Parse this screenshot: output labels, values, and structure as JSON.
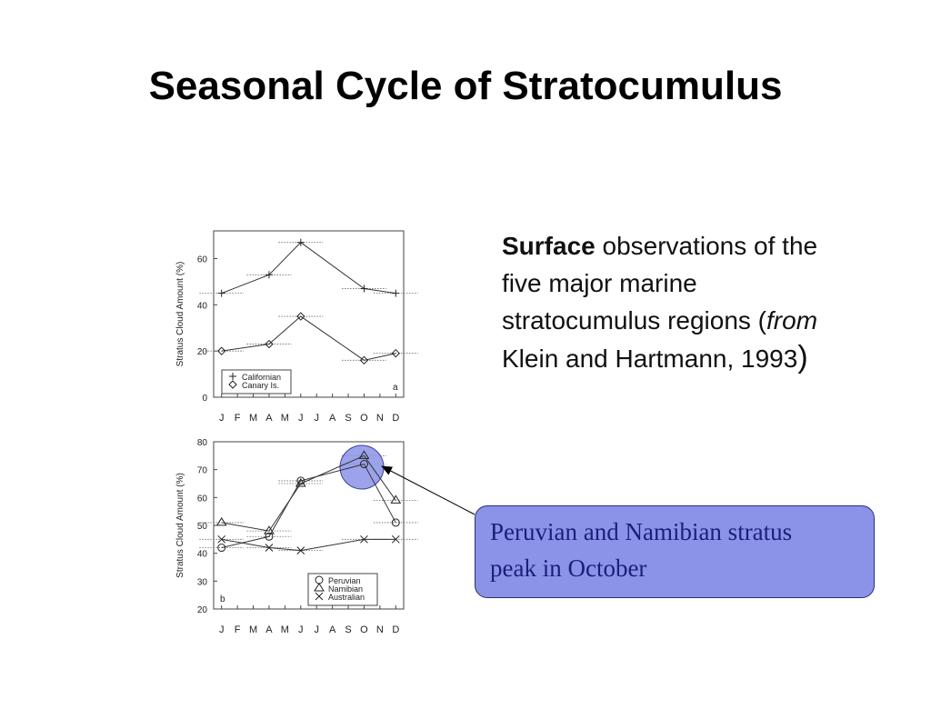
{
  "slide": {
    "title": "Seasonal Cycle of Stratocumulus",
    "description": {
      "part1_bold": "Surface",
      "part2": " observations of the five major marine stratocumulus regions (",
      "part3_italic": "from",
      "part4": " Klein and Hartmann, 1993",
      "part5": ")"
    },
    "callout": {
      "line1": "Peruvian and Namibian stratus",
      "line2": "peak in October"
    }
  },
  "chart_data": [
    {
      "type": "line",
      "panel_label": "a",
      "ylabel": "Stratus Cloud Amount (%)",
      "ylim": [
        0,
        72
      ],
      "yticks": [
        0,
        20,
        40,
        60
      ],
      "categories": [
        "J",
        "F",
        "M",
        "A",
        "M",
        "J",
        "J",
        "A",
        "S",
        "O",
        "N",
        "D"
      ],
      "series": [
        {
          "name": "Californian",
          "marker": "plus",
          "points": [
            [
              "J",
              45
            ],
            [
              "A",
              53
            ],
            [
              "J",
              67
            ],
            [
              "O",
              47
            ],
            [
              "D",
              45
            ]
          ]
        },
        {
          "name": "Canary Is.",
          "marker": "diamond",
          "points": [
            [
              "J",
              20
            ],
            [
              "A",
              23
            ],
            [
              "J",
              35
            ],
            [
              "O",
              16
            ],
            [
              "D",
              19
            ]
          ]
        }
      ],
      "grid": false,
      "legend": "bottom-left"
    },
    {
      "type": "line",
      "panel_label": "b",
      "ylabel": "Stratus Cloud Amount (%)",
      "ylim": [
        20,
        80
      ],
      "yticks": [
        20,
        30,
        40,
        50,
        60,
        70,
        80
      ],
      "categories": [
        "J",
        "F",
        "M",
        "A",
        "M",
        "J",
        "J",
        "A",
        "S",
        "O",
        "N",
        "D"
      ],
      "series": [
        {
          "name": "Peruvian",
          "marker": "circle",
          "points": [
            [
              "J",
              42
            ],
            [
              "A",
              46
            ],
            [
              "J",
              66
            ],
            [
              "O",
              72
            ],
            [
              "D",
              51
            ]
          ]
        },
        {
          "name": "Namibian",
          "marker": "triangle",
          "points": [
            [
              "J",
              51
            ],
            [
              "A",
              48
            ],
            [
              "J",
              65
            ],
            [
              "O",
              75
            ],
            [
              "D",
              59
            ]
          ]
        },
        {
          "name": "Australian",
          "marker": "cross",
          "points": [
            [
              "J",
              45
            ],
            [
              "A",
              42
            ],
            [
              "J",
              41
            ],
            [
              "O",
              45
            ],
            [
              "D",
              45
            ]
          ]
        }
      ],
      "grid": false,
      "legend": "bottom-right"
    }
  ]
}
